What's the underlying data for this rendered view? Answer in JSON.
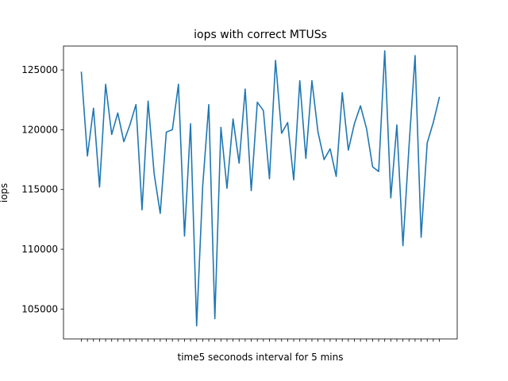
{
  "chart_data": {
    "type": "line",
    "title": "iops with correct MTUSs",
    "xlabel": "time5 seconods interval for 5 mins",
    "ylabel": "iops",
    "x_tick_labels": "none",
    "ylim": [
      102500,
      127000
    ],
    "yticks": [
      105000,
      110000,
      115000,
      120000,
      125000
    ],
    "ytick_labels": [
      "105000",
      "110000",
      "115000",
      "120000",
      "125000"
    ],
    "grid": false,
    "legend": "none",
    "series": [
      {
        "color": "#1f77b4",
        "values": [
          124800,
          117800,
          121800,
          115200,
          123800,
          119600,
          121400,
          119000,
          120400,
          122100,
          113300,
          122400,
          116300,
          113000,
          119800,
          120000,
          123800,
          111100,
          120500,
          103600,
          115300,
          122100,
          104200,
          120200,
          115100,
          120900,
          117200,
          123400,
          114900,
          122300,
          121600,
          115900,
          125800,
          119700,
          120600,
          115800,
          124100,
          117600,
          124100,
          119800,
          117500,
          118400,
          116100,
          123100,
          118300,
          120500,
          122000,
          120100,
          116900,
          116500,
          126600,
          114300,
          120400,
          110300,
          118600,
          126200,
          111000,
          118900,
          120600,
          122700
        ]
      }
    ]
  }
}
